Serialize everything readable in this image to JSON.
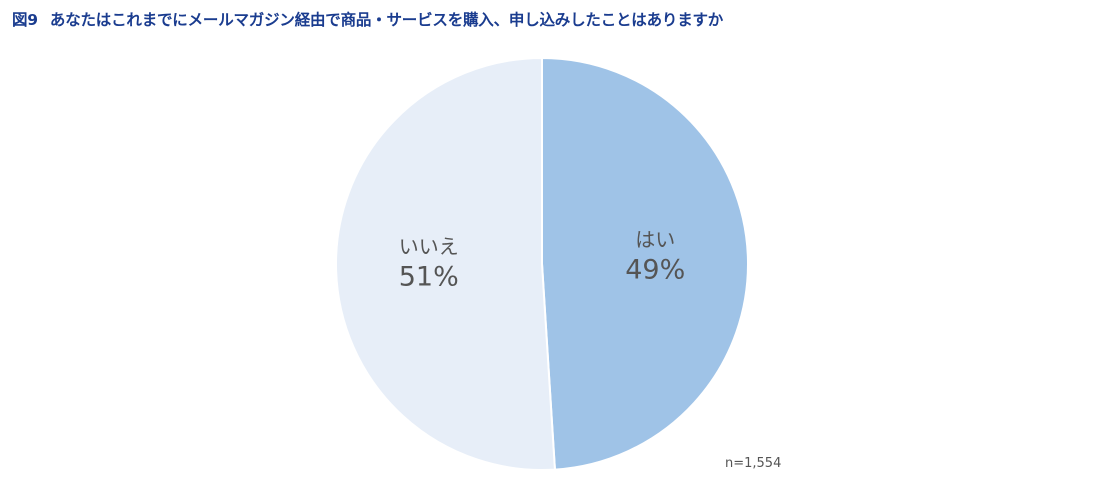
{
  "figure": {
    "number": "図9",
    "title": "あなたはこれまでにメールマガジン経由で商品・サービスを購入、申し込みしたことはありますか"
  },
  "sample_size": "n=1,554",
  "chart_data": {
    "type": "pie",
    "categories": [
      "はい",
      "いいえ"
    ],
    "values": [
      49,
      51
    ],
    "value_labels": [
      "49%",
      "51%"
    ],
    "colors": [
      "#9fc3e7",
      "#e7eef8"
    ],
    "start": "12 o'clock, clockwise",
    "legend": "none (labels inside slices)"
  }
}
